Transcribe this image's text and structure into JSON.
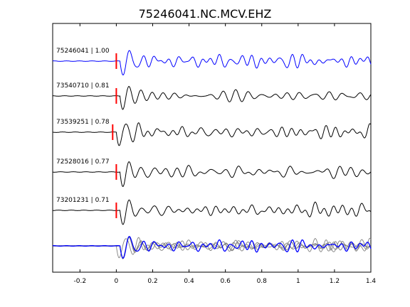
{
  "chart_data": {
    "type": "line",
    "title": "75246041.NC.MCV.EHZ",
    "xlabel": "",
    "ylabel": "",
    "xlim": [
      -0.35,
      1.4
    ],
    "xticks": [
      -0.2,
      0,
      0.2,
      0.4,
      0.6,
      0.8,
      1,
      1.2,
      1.4
    ],
    "xtick_labels": [
      "-0.2",
      "0",
      "0.2",
      "0.4",
      "0.6",
      "0.8",
      "1",
      "1.2",
      "1.4"
    ],
    "grid": false,
    "legend": "none",
    "colors": {
      "reference": "#0000ff",
      "correlated": "#000000",
      "overlay": "#808080",
      "pick": "#ff0000",
      "axes": "#000000"
    },
    "traces": [
      {
        "label": "75246041 | 1.00",
        "color": "reference",
        "pick_time": 0.0,
        "seed": 1
      },
      {
        "label": "73540710 | 0.81",
        "color": "correlated",
        "pick_time": 0.0,
        "seed": 2
      },
      {
        "label": "73539251 | 0.78",
        "color": "correlated",
        "pick_time": -0.02,
        "seed": 3
      },
      {
        "label": "72528016 | 0.77",
        "color": "correlated",
        "pick_time": 0.0,
        "seed": 4
      },
      {
        "label": "73201231 | 0.71",
        "color": "correlated",
        "pick_time": 0.0,
        "seed": 5
      }
    ],
    "stack": {
      "label": "",
      "note_visible": false
    }
  }
}
